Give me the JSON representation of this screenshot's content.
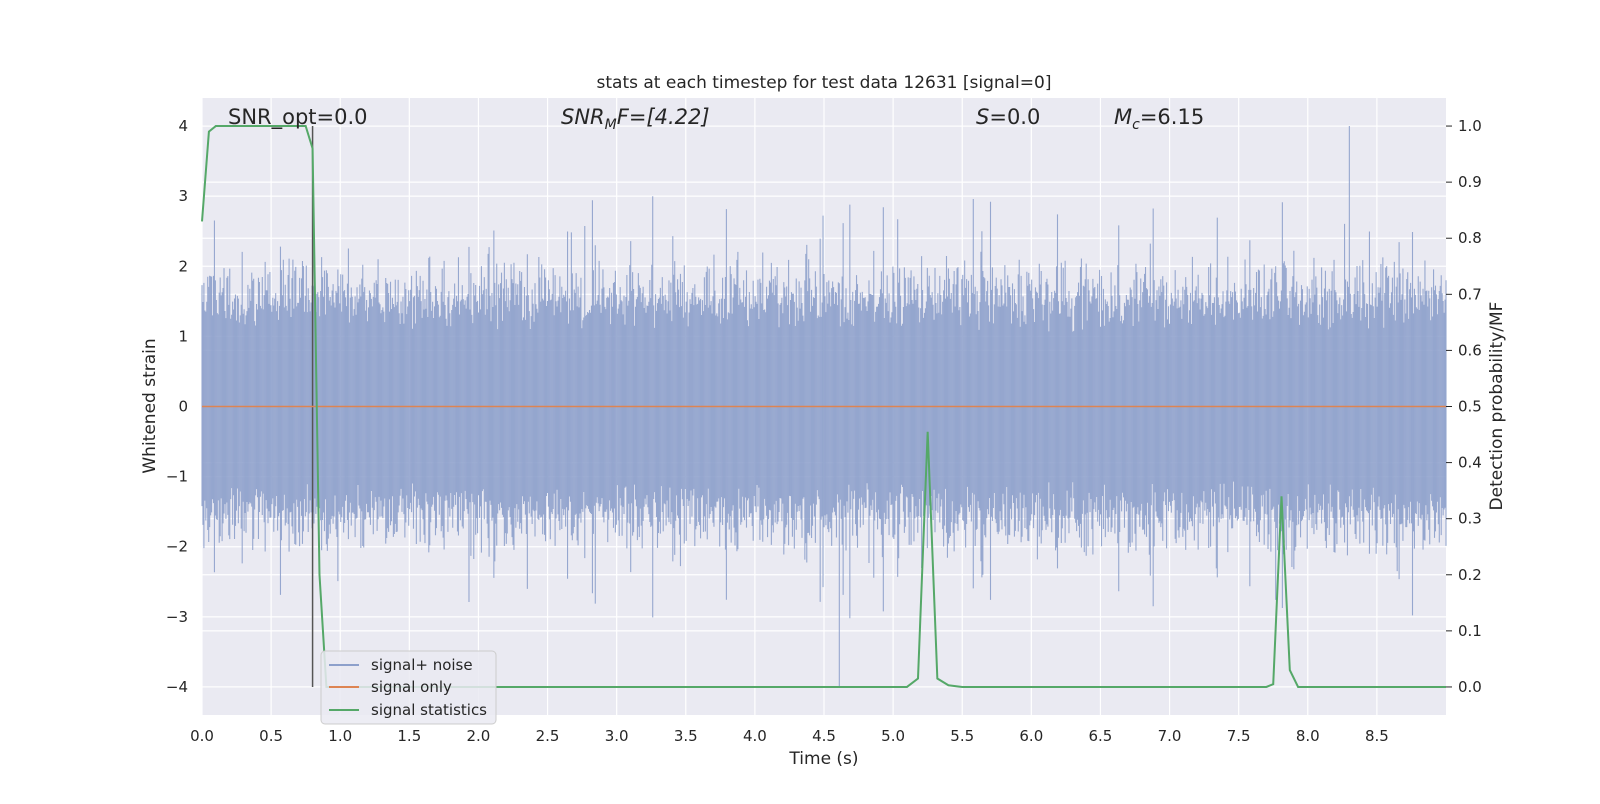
{
  "chart_data": {
    "type": "line",
    "title": "stats at each timestep for test data 12631 [signal=0]",
    "xlabel": "Time (s)",
    "ylabel_left": "Whitened strain",
    "ylabel_right": "Detection probability/MF",
    "xlim": [
      0.0,
      9.0
    ],
    "ylim_left": [
      -4.4,
      4.4
    ],
    "ylim_right": [
      -0.05,
      1.05
    ],
    "x_ticks": [
      "0.0",
      "0.5",
      "1.0",
      "1.5",
      "2.0",
      "2.5",
      "3.0",
      "3.5",
      "4.0",
      "4.5",
      "5.0",
      "5.5",
      "6.0",
      "6.5",
      "7.0",
      "7.5",
      "8.0",
      "8.5"
    ],
    "y_ticks_left": [
      "4",
      "3",
      "2",
      "1",
      "0",
      "−1",
      "−2",
      "−3",
      "−4"
    ],
    "y_ticks_right": [
      "1.0",
      "0.9",
      "0.8",
      "0.7",
      "0.6",
      "0.5",
      "0.4",
      "0.3",
      "0.2",
      "0.1",
      "0.0"
    ],
    "annotations": {
      "snr_opt": "SNR_opt=0.0",
      "snr_mf_base": "SNR",
      "snr_mf_sub": "M",
      "snr_mf_rest": "F=[4.22]",
      "s_label": "S",
      "s_rest": "=0.0",
      "mc_base": "M",
      "mc_sub": "c",
      "mc_rest": "=6.15"
    },
    "vertical_line_x": 0.8,
    "series": [
      {
        "name": "signal+ noise",
        "color": "#8da0cb",
        "description_stats": {
          "typical_abs_max": 2.0,
          "peak_max": 4.0,
          "peak_max_t": 8.3,
          "peak_min": -4.0,
          "peak_min_t": 4.61
        }
      },
      {
        "name": "signal only",
        "color": "#dd8452",
        "x": [
          0.0,
          9.0
        ],
        "y": [
          0.0,
          0.0
        ]
      },
      {
        "name": "signal statistics",
        "color": "#55a868",
        "x": [
          0.0,
          0.05,
          0.1,
          0.65,
          0.75,
          0.8,
          0.85,
          0.9,
          5.1,
          5.18,
          5.25,
          5.32,
          5.4,
          5.5,
          7.7,
          7.75,
          7.81,
          7.87,
          7.93,
          9.0
        ],
        "y": [
          0.83,
          0.99,
          1.0,
          1.0,
          1.0,
          0.96,
          0.2,
          0.0,
          0.0,
          0.015,
          0.455,
          0.015,
          0.003,
          0.0,
          0.0,
          0.005,
          0.34,
          0.03,
          0.0,
          0.0
        ]
      }
    ],
    "legend": {
      "placement": "lower-left"
    },
    "grid": true
  }
}
